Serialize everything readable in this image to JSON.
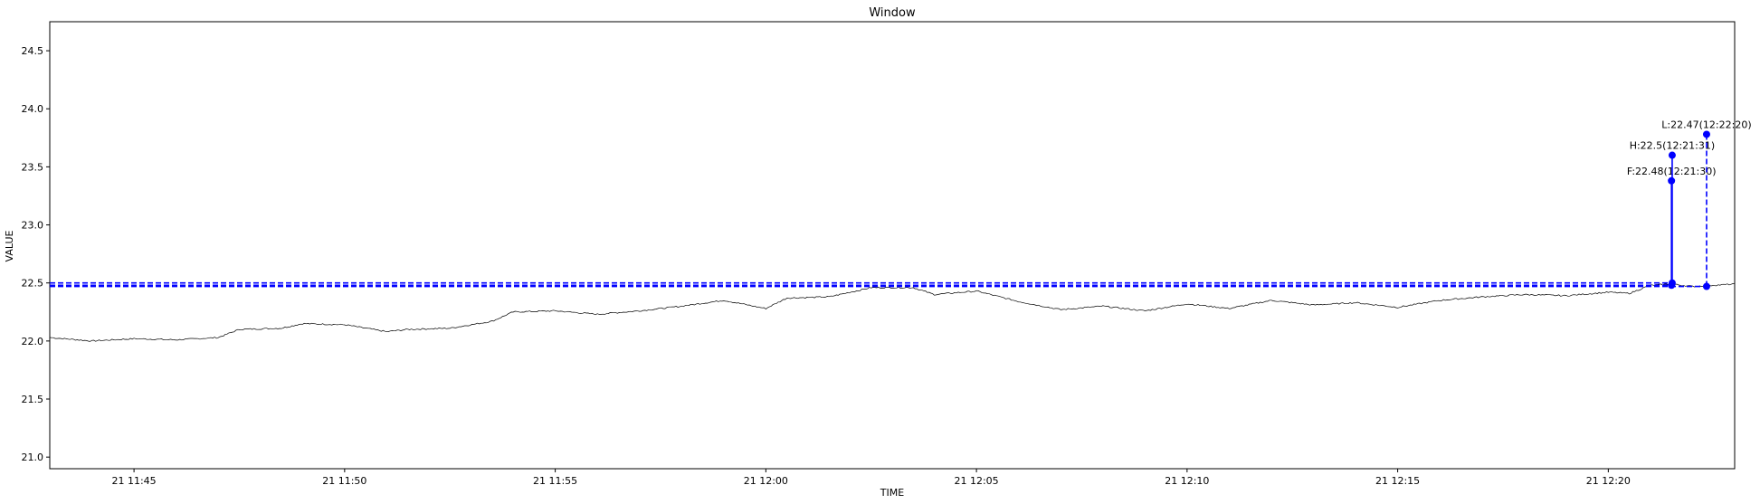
{
  "chart_data": {
    "type": "line",
    "title": "Window",
    "xlabel": "TIME",
    "ylabel": "VALUE",
    "ylim": [
      20.9,
      24.75
    ],
    "xlim": [
      "11:43:00",
      "12:23:00"
    ],
    "grid": false,
    "y_ticks": [
      "21.0",
      "21.5",
      "22.0",
      "22.5",
      "23.0",
      "23.5",
      "24.0",
      "24.5"
    ],
    "x_ticks": [
      {
        "t": "11:45:00",
        "label": "21 11:45"
      },
      {
        "t": "11:50:00",
        "label": "21 11:50"
      },
      {
        "t": "11:55:00",
        "label": "21 11:55"
      },
      {
        "t": "12:00:00",
        "label": "21 12:00"
      },
      {
        "t": "12:05:00",
        "label": "21 12:05"
      },
      {
        "t": "12:10:00",
        "label": "21 12:10"
      },
      {
        "t": "12:15:00",
        "label": "21 12:15"
      },
      {
        "t": "12:20:00",
        "label": "21 12:20"
      }
    ],
    "series": [
      {
        "color": "#000000",
        "points": [
          [
            "11:43:00",
            22.03
          ],
          [
            "11:44:00",
            22.0
          ],
          [
            "11:45:00",
            22.02
          ],
          [
            "11:46:00",
            22.01
          ],
          [
            "11:47:00",
            22.03
          ],
          [
            "11:47:30",
            22.1
          ],
          [
            "11:48:30",
            22.11
          ],
          [
            "11:49:00",
            22.15
          ],
          [
            "11:50:00",
            22.14
          ],
          [
            "11:51:00",
            22.08
          ],
          [
            "11:51:30",
            22.1
          ],
          [
            "11:52:30",
            22.11
          ],
          [
            "11:53:30",
            22.17
          ],
          [
            "11:54:00",
            22.25
          ],
          [
            "11:55:00",
            22.26
          ],
          [
            "11:56:00",
            22.23
          ],
          [
            "11:57:00",
            22.26
          ],
          [
            "11:58:00",
            22.3
          ],
          [
            "11:59:00",
            22.35
          ],
          [
            "12:00:00",
            22.28
          ],
          [
            "12:00:30",
            22.37
          ],
          [
            "12:01:30",
            22.38
          ],
          [
            "12:02:30",
            22.46
          ],
          [
            "12:03:30",
            22.46
          ],
          [
            "12:04:00",
            22.4
          ],
          [
            "12:05:00",
            22.43
          ],
          [
            "12:06:00",
            22.34
          ],
          [
            "12:07:00",
            22.27
          ],
          [
            "12:08:00",
            22.3
          ],
          [
            "12:09:00",
            22.26
          ],
          [
            "12:10:00",
            22.32
          ],
          [
            "12:11:00",
            22.28
          ],
          [
            "12:12:00",
            22.35
          ],
          [
            "12:13:00",
            22.31
          ],
          [
            "12:14:00",
            22.33
          ],
          [
            "12:15:00",
            22.29
          ],
          [
            "12:16:00",
            22.35
          ],
          [
            "12:17:00",
            22.38
          ],
          [
            "12:18:00",
            22.4
          ],
          [
            "12:19:00",
            22.39
          ],
          [
            "12:20:00",
            22.42
          ],
          [
            "12:20:30",
            22.41
          ],
          [
            "12:21:00",
            22.48
          ],
          [
            "12:21:30",
            22.49
          ],
          [
            "12:22:00",
            22.47
          ],
          [
            "12:23:00",
            22.49
          ]
        ]
      }
    ],
    "reference_lines": [
      {
        "y": 22.5,
        "color": "#0000ff",
        "style": "dashed",
        "x_end": "12:21:31"
      },
      {
        "y": 22.48,
        "color": "#0000ff",
        "style": "dashed",
        "x_end": "12:21:30"
      },
      {
        "y": 22.47,
        "color": "#0000ff",
        "style": "dashed",
        "x_end": "12:22:20"
      }
    ],
    "markers": [
      {
        "t": "12:21:30",
        "y_base": 22.48,
        "y_top": 23.38,
        "label": "F:22.48(12:21:30)",
        "line_style": "solid",
        "color": "#0000ff"
      },
      {
        "t": "12:21:31",
        "y_base": 22.5,
        "y_top": 23.6,
        "label": "H:22.5(12:21:31)",
        "line_style": "solid",
        "color": "#0000ff"
      },
      {
        "t": "12:22:20",
        "y_base": 22.47,
        "y_top": 23.78,
        "label": "L:22.47(12:22:20)",
        "line_style": "dashed",
        "color": "#0000ff"
      }
    ]
  }
}
